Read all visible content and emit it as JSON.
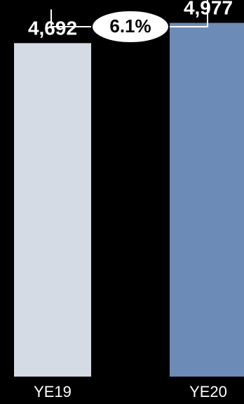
{
  "chart_data": {
    "type": "bar",
    "title": "",
    "xlabel": "",
    "ylabel": "",
    "categories": [
      "YE19",
      "YE20"
    ],
    "values": [
      4692,
      4977
    ],
    "value_labels": [
      "4,692",
      "4,977"
    ],
    "bar_colors": [
      "#d5dbe4",
      "#6c8bb6"
    ],
    "ylim": [
      0,
      5200
    ],
    "grid": false,
    "legend": "none",
    "annotation": {
      "label": "6.1%",
      "from": "YE19",
      "to": "YE20",
      "style": "bracket-arrow"
    }
  },
  "colors": {
    "background": "#000000",
    "text": "#ffffff",
    "annotation_fill": "#ffffff",
    "annotation_text": "#000000"
  }
}
